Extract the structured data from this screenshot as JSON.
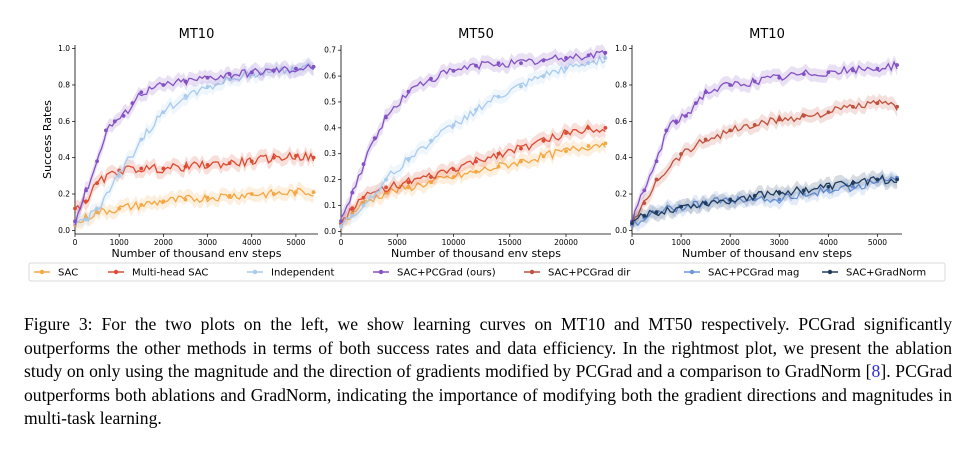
{
  "colors": {
    "SAC": "#f5a742",
    "Multi-head SAC": "#dc4b32",
    "Independent": "#a9cbee",
    "SAC+PCGrad (ours)": "#8451c4",
    "SAC+PCGrad dir": "#c0513c",
    "SAC+PCGrad mag": "#6c95e0",
    "SAC+GradNorm": "#1f3b5e"
  },
  "legend": [
    "SAC",
    "Multi-head SAC",
    "Independent",
    "SAC+PCGrad (ours)",
    "SAC+PCGrad dir",
    "SAC+PCGrad mag",
    "SAC+GradNorm"
  ],
  "chart_data": [
    {
      "type": "line",
      "title": "MT10",
      "xlabel": "Number of thousand env steps",
      "ylabel": "Success Rates",
      "xlim": [
        0,
        5500
      ],
      "ylim": [
        -0.02,
        1.02
      ],
      "xticks": [
        0,
        1000,
        2000,
        3000,
        4000,
        5000
      ],
      "yticks": [
        0.0,
        0.2,
        0.4,
        0.6,
        0.8,
        1.0
      ],
      "ytick_labels": [
        "0.0",
        "0.2",
        "0.4",
        "0.6",
        "0.8",
        "1.0"
      ],
      "grid": false,
      "series": [
        {
          "name": "SAC",
          "x": [
            0,
            250,
            500,
            1000,
            1500,
            2000,
            2500,
            3000,
            3500,
            4000,
            4500,
            5000,
            5400
          ],
          "y": [
            0.03,
            0.07,
            0.1,
            0.12,
            0.14,
            0.16,
            0.17,
            0.18,
            0.19,
            0.2,
            0.2,
            0.21,
            0.21
          ]
        },
        {
          "name": "Multi-head SAC",
          "x": [
            0,
            250,
            500,
            1000,
            1500,
            2000,
            2500,
            3000,
            3500,
            4000,
            4500,
            5000,
            5400
          ],
          "y": [
            0.12,
            0.16,
            0.26,
            0.33,
            0.34,
            0.34,
            0.35,
            0.36,
            0.37,
            0.38,
            0.4,
            0.41,
            0.4
          ]
        },
        {
          "name": "Independent",
          "x": [
            0,
            250,
            500,
            1000,
            1500,
            2000,
            2500,
            3000,
            3500,
            4000,
            4500,
            5000,
            5400
          ],
          "y": [
            0.04,
            0.06,
            0.12,
            0.3,
            0.5,
            0.65,
            0.74,
            0.79,
            0.83,
            0.86,
            0.88,
            0.89,
            0.9
          ]
        },
        {
          "name": "SAC+PCGrad (ours)",
          "x": [
            0,
            250,
            500,
            700,
            900,
            1100,
            1300,
            1500,
            2000,
            2500,
            3000,
            3500,
            4000,
            4500,
            5000,
            5400
          ],
          "y": [
            0.05,
            0.22,
            0.38,
            0.55,
            0.6,
            0.63,
            0.7,
            0.76,
            0.8,
            0.82,
            0.84,
            0.86,
            0.87,
            0.88,
            0.89,
            0.9
          ]
        }
      ]
    },
    {
      "type": "line",
      "title": "MT50",
      "xlabel": "Number of thousand env steps",
      "ylabel": "",
      "xlim": [
        0,
        24000
      ],
      "ylim": [
        -0.01,
        0.72
      ],
      "xticks": [
        0,
        5000,
        10000,
        15000,
        20000
      ],
      "yticks": [
        0.0,
        0.1,
        0.2,
        0.3,
        0.4,
        0.5,
        0.6,
        0.7
      ],
      "ytick_labels": [
        "0.0",
        "0.1",
        "0.2",
        "0.3",
        "0.4",
        "0.5",
        "0.6",
        "0.7"
      ],
      "grid": false,
      "series": [
        {
          "name": "SAC",
          "x": [
            0,
            1000,
            2000,
            4000,
            6000,
            8000,
            10000,
            12000,
            14000,
            16000,
            18000,
            20000,
            22000,
            23500
          ],
          "y": [
            0.02,
            0.07,
            0.11,
            0.15,
            0.17,
            0.19,
            0.21,
            0.23,
            0.25,
            0.27,
            0.29,
            0.31,
            0.33,
            0.34
          ]
        },
        {
          "name": "Multi-head SAC",
          "x": [
            0,
            1000,
            2000,
            4000,
            6000,
            8000,
            10000,
            12000,
            14000,
            16000,
            18000,
            20000,
            22000,
            23500
          ],
          "y": [
            0.03,
            0.09,
            0.13,
            0.17,
            0.19,
            0.21,
            0.24,
            0.27,
            0.3,
            0.32,
            0.35,
            0.38,
            0.4,
            0.4
          ]
        },
        {
          "name": "Independent",
          "x": [
            0,
            1000,
            2000,
            4000,
            6000,
            8000,
            10000,
            12000,
            14000,
            16000,
            18000,
            20000,
            22000,
            23500
          ],
          "y": [
            0.02,
            0.06,
            0.1,
            0.2,
            0.28,
            0.35,
            0.41,
            0.47,
            0.52,
            0.56,
            0.6,
            0.63,
            0.65,
            0.67
          ]
        },
        {
          "name": "SAC+PCGrad (ours)",
          "x": [
            0,
            1000,
            2000,
            3000,
            4000,
            6000,
            8000,
            10000,
            12000,
            14000,
            16000,
            18000,
            20000,
            22000,
            23500
          ],
          "y": [
            0.04,
            0.15,
            0.26,
            0.36,
            0.44,
            0.54,
            0.59,
            0.62,
            0.64,
            0.65,
            0.65,
            0.66,
            0.67,
            0.68,
            0.69
          ]
        }
      ]
    },
    {
      "type": "line",
      "title": "MT10",
      "xlabel": "Number of thousand env steps",
      "ylabel": "",
      "xlim": [
        0,
        5500
      ],
      "ylim": [
        -0.02,
        1.02
      ],
      "xticks": [
        0,
        1000,
        2000,
        3000,
        4000,
        5000
      ],
      "yticks": [
        0.0,
        0.2,
        0.4,
        0.6,
        0.8,
        1.0
      ],
      "ytick_labels": [
        "0.0",
        "0.2",
        "0.4",
        "0.6",
        "0.8",
        "1.0"
      ],
      "grid": false,
      "series": [
        {
          "name": "SAC+PCGrad (ours)",
          "x": [
            0,
            250,
            500,
            700,
            900,
            1100,
            1300,
            1500,
            2000,
            2500,
            3000,
            3500,
            4000,
            4500,
            5000,
            5400
          ],
          "y": [
            0.05,
            0.22,
            0.38,
            0.55,
            0.6,
            0.63,
            0.7,
            0.76,
            0.8,
            0.82,
            0.84,
            0.86,
            0.87,
            0.88,
            0.89,
            0.91
          ]
        },
        {
          "name": "SAC+PCGrad dir",
          "x": [
            0,
            250,
            500,
            1000,
            1500,
            2000,
            2500,
            3000,
            3500,
            4000,
            4500,
            5000,
            5400
          ],
          "y": [
            0.03,
            0.15,
            0.28,
            0.42,
            0.5,
            0.55,
            0.58,
            0.61,
            0.63,
            0.65,
            0.68,
            0.7,
            0.68
          ]
        },
        {
          "name": "SAC+PCGrad mag",
          "x": [
            0,
            250,
            500,
            1000,
            1500,
            2000,
            2500,
            3000,
            3500,
            4000,
            4500,
            5000,
            5400
          ],
          "y": [
            0.03,
            0.07,
            0.1,
            0.13,
            0.15,
            0.17,
            0.17,
            0.17,
            0.2,
            0.22,
            0.24,
            0.27,
            0.29
          ]
        },
        {
          "name": "SAC+GradNorm",
          "x": [
            0,
            250,
            500,
            1000,
            1500,
            2000,
            2500,
            3000,
            3500,
            4000,
            4500,
            5000,
            5400
          ],
          "y": [
            0.04,
            0.08,
            0.1,
            0.13,
            0.15,
            0.17,
            0.19,
            0.21,
            0.22,
            0.24,
            0.26,
            0.28,
            0.28
          ]
        }
      ]
    }
  ],
  "caption": {
    "prefix": "Figure 3: For the two plots on the left, we show learning curves on MT10 and MT50 respectively. PCGrad significantly outperforms the other methods in terms of both success rates and data efficiency. In the rightmost plot, we present the ablation study on only using the magnitude and the direction of gradients modified by PCGrad and a comparison to GradNorm [",
    "citation": "8",
    "suffix": "]. PCGrad outperforms both ablations and GradNorm, indicating the importance of modifying both the gradient directions and magnitudes in multi-task learning."
  }
}
